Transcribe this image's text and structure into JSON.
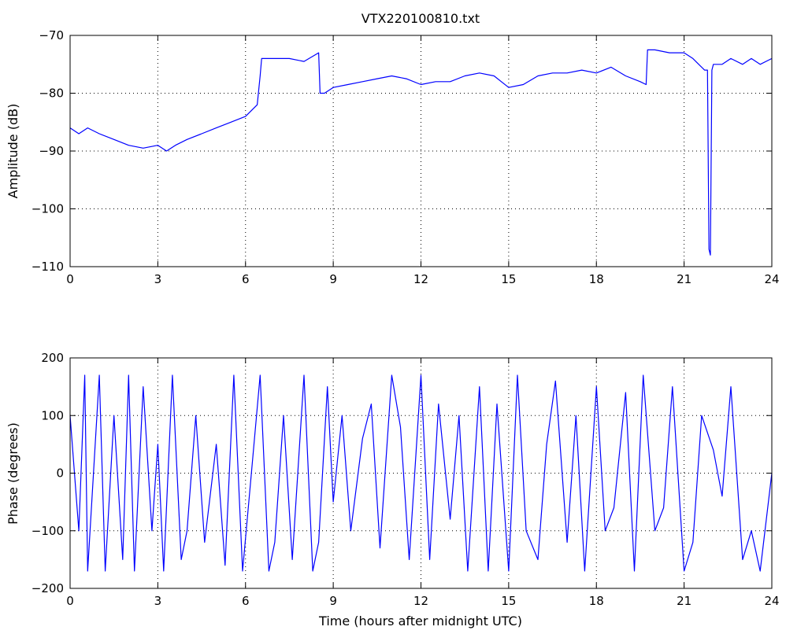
{
  "chart_data": [
    {
      "type": "line",
      "title": "VTX220100810.txt",
      "xlabel": "",
      "ylabel": "Amplitude (dB)",
      "xlim": [
        0,
        24
      ],
      "ylim": [
        -110,
        -70
      ],
      "xticks": [
        "0",
        "3",
        "6",
        "9",
        "12",
        "15",
        "18",
        "21",
        "24"
      ],
      "yticks": [
        "-70",
        "-80",
        "-90",
        "-100",
        "-110"
      ],
      "grid": "dotted",
      "line_color": "#0000ff",
      "series": [
        {
          "x": [
            0,
            0.3,
            0.6,
            1.0,
            1.5,
            2.0,
            2.5,
            3.0,
            3.3,
            3.6,
            4.0,
            4.5,
            5.0,
            5.5,
            6.0,
            6.4,
            6.5,
            6.55,
            7.0,
            7.5,
            8.0,
            8.5,
            8.55,
            8.7,
            9.0,
            9.5,
            10.0,
            10.5,
            11.0,
            11.5,
            12.0,
            12.5,
            13.0,
            13.5,
            14.0,
            14.5,
            15.0,
            15.5,
            16.0,
            16.5,
            17.0,
            17.5,
            18.0,
            18.5,
            19.0,
            19.5,
            19.7,
            19.75,
            20.0,
            20.5,
            21.0,
            21.3,
            21.5,
            21.7,
            21.8,
            21.85,
            21.9,
            21.95,
            22.0,
            22.3,
            22.6,
            23.0,
            23.3,
            23.6,
            24.0
          ],
          "y": [
            -86,
            -87,
            -86,
            -87,
            -88,
            -89,
            -89.5,
            -89,
            -90,
            -89,
            -88,
            -87,
            -86,
            -85,
            -84,
            -82,
            -77,
            -74,
            -74,
            -74,
            -74.5,
            -73,
            -80,
            -80,
            -79,
            -78.5,
            -78,
            -77.5,
            -77,
            -77.5,
            -78.5,
            -78,
            -78,
            -77,
            -76.5,
            -77,
            -79,
            -78.5,
            -77,
            -76.5,
            -76.5,
            -76,
            -76.5,
            -75.5,
            -77,
            -78,
            -78.5,
            -72.5,
            -72.5,
            -73,
            -73,
            -74,
            -75,
            -76,
            -76,
            -107,
            -108,
            -76,
            -75,
            -75,
            -74,
            -75,
            -74,
            -75,
            -74
          ]
        }
      ]
    },
    {
      "type": "line",
      "title": "",
      "xlabel": "Time (hours after midnight UTC)",
      "ylabel": "Phase (degrees)",
      "xlim": [
        0,
        24
      ],
      "ylim": [
        -200,
        200
      ],
      "xticks": [
        "0",
        "3",
        "6",
        "9",
        "12",
        "15",
        "18",
        "21",
        "24"
      ],
      "yticks": [
        "200",
        "100",
        "0",
        "-100",
        "-200"
      ],
      "grid": "dotted",
      "line_color": "#0000ff",
      "series": [
        {
          "x": [
            0,
            0.3,
            0.5,
            0.6,
            0.8,
            1.0,
            1.2,
            1.5,
            1.8,
            2.0,
            2.2,
            2.5,
            2.8,
            3.0,
            3.2,
            3.5,
            3.8,
            4.0,
            4.3,
            4.6,
            5.0,
            5.3,
            5.6,
            5.9,
            6.2,
            6.5,
            6.8,
            7.0,
            7.3,
            7.6,
            8.0,
            8.3,
            8.5,
            8.8,
            9.0,
            9.3,
            9.6,
            10.0,
            10.3,
            10.6,
            11.0,
            11.3,
            11.6,
            12.0,
            12.3,
            12.6,
            13.0,
            13.3,
            13.6,
            14.0,
            14.3,
            14.6,
            15.0,
            15.3,
            15.6,
            16.0,
            16.3,
            16.6,
            17.0,
            17.3,
            17.6,
            18.0,
            18.3,
            18.6,
            19.0,
            19.3,
            19.6,
            20.0,
            20.3,
            20.6,
            21.0,
            21.3,
            21.6,
            22.0,
            22.3,
            22.6,
            23.0,
            23.3,
            23.6,
            24.0
          ],
          "y": [
            100,
            -100,
            170,
            -170,
            0,
            170,
            -170,
            100,
            -150,
            170,
            -170,
            150,
            -100,
            50,
            -170,
            170,
            -150,
            -100,
            100,
            -120,
            50,
            -160,
            170,
            -170,
            0,
            170,
            -170,
            -120,
            100,
            -150,
            170,
            -170,
            -120,
            150,
            -50,
            100,
            -100,
            60,
            120,
            -130,
            170,
            80,
            -150,
            170,
            -150,
            120,
            -80,
            100,
            -170,
            150,
            -170,
            120,
            -170,
            170,
            -100,
            -150,
            50,
            160,
            -120,
            100,
            -170,
            150,
            -100,
            -60,
            140,
            -170,
            170,
            -100,
            -60,
            150,
            -170,
            -120,
            100,
            40,
            -40,
            150,
            -150,
            -100,
            -170,
            0
          ]
        }
      ]
    }
  ]
}
